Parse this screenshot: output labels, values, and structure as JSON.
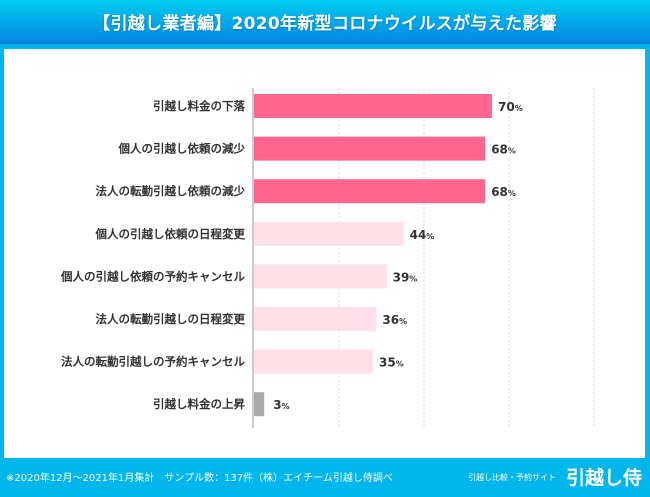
{
  "header": {
    "title": "【引越し業者編】2020年新型コロナウイルスが与えた影響"
  },
  "footer": {
    "note": "※2020年12月～2021年1月集計　サンプル数：137件（株）エイチーム引越し侍調べ",
    "brand_sub": "引越し比較・予約サイト",
    "brand": "引越し侍"
  },
  "colors": {
    "strong": "#ff6690",
    "light": "#ffe0e8",
    "neutral": "#aaaaaa",
    "frame": "#00b6ec"
  },
  "chart_data": {
    "type": "bar",
    "orientation": "horizontal",
    "title": "【引越し業者編】2020年新型コロナウイルスが与えた影響",
    "xlabel": "",
    "ylabel": "",
    "unit": "%",
    "xlim": [
      0,
      100
    ],
    "gridlines": [
      25,
      50,
      75,
      100
    ],
    "grid": true,
    "categories": [
      "引越し料金の下落",
      "個人の引越し依頼の減少",
      "法人の転勤引越し依頼の減少",
      "個人の引越し依頼の日程変更",
      "個人の引越し依頼の予約キャンセル",
      "法人の転勤引越しの日程変更",
      "法人の転勤引越しの予約キャンセル",
      "引越し料金の上昇"
    ],
    "values": [
      70,
      68,
      68,
      44,
      39,
      36,
      35,
      3
    ],
    "bar_color_groups": [
      "strong",
      "strong",
      "strong",
      "light",
      "light",
      "light",
      "light",
      "neutral"
    ]
  }
}
